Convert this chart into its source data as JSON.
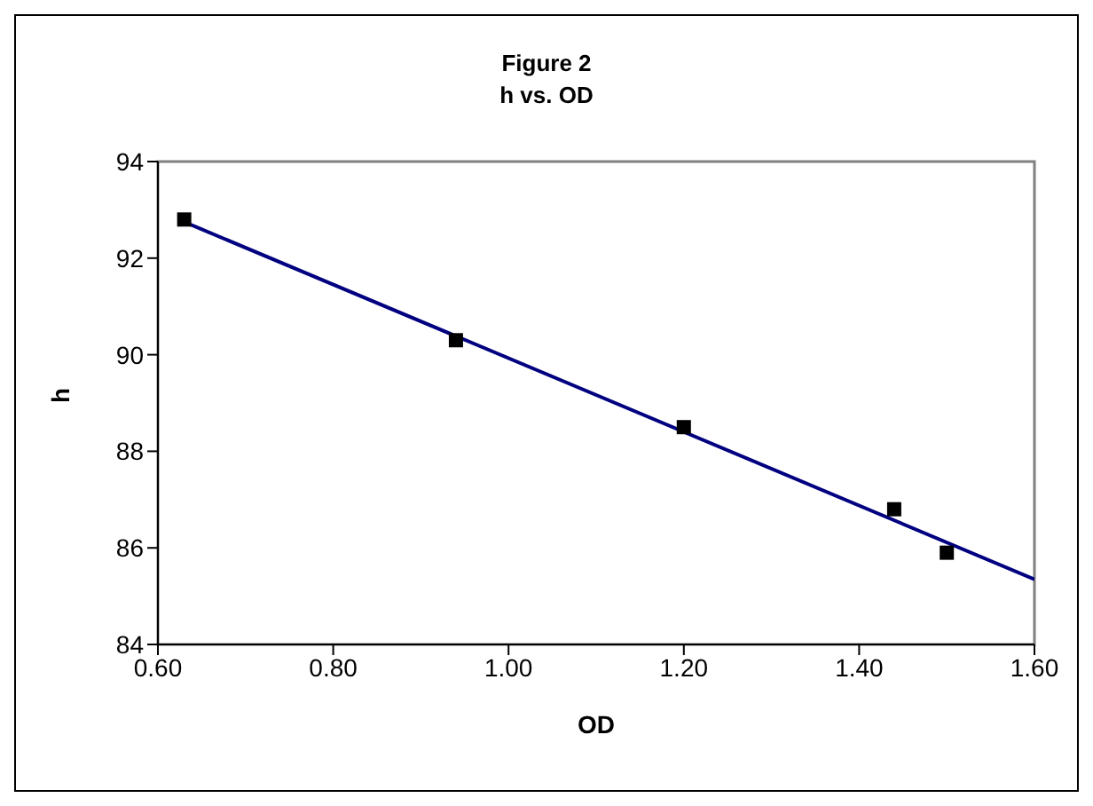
{
  "chart_data": {
    "type": "scatter",
    "title": "Figure 2",
    "subtitle": "h vs. OD",
    "xlabel": "OD",
    "ylabel": "h",
    "x": [
      0.63,
      0.94,
      1.2,
      1.44,
      1.5
    ],
    "series": [
      {
        "color": "#000000",
        "marker": "square",
        "values": [
          92.8,
          90.3,
          88.5,
          86.8,
          85.9
        ]
      },
      {
        "type": "line",
        "color": "#000080",
        "marker": "none",
        "x": [
          0.63,
          1.6
        ],
        "values": [
          92.75,
          85.35
        ]
      }
    ],
    "xlim": [
      0.6,
      1.6
    ],
    "xticks": [
      {
        "value": 0.6,
        "label": "0.60"
      },
      {
        "value": 0.8,
        "label": "0.80"
      },
      {
        "value": 1.0,
        "label": "1.00"
      },
      {
        "value": 1.2,
        "label": "1.20"
      },
      {
        "value": 1.4,
        "label": "1.40"
      },
      {
        "value": 1.6,
        "label": "1.60"
      }
    ],
    "ylim": [
      84,
      94
    ],
    "yticks": [
      84,
      86,
      88,
      90,
      92,
      94
    ],
    "grid": false
  }
}
